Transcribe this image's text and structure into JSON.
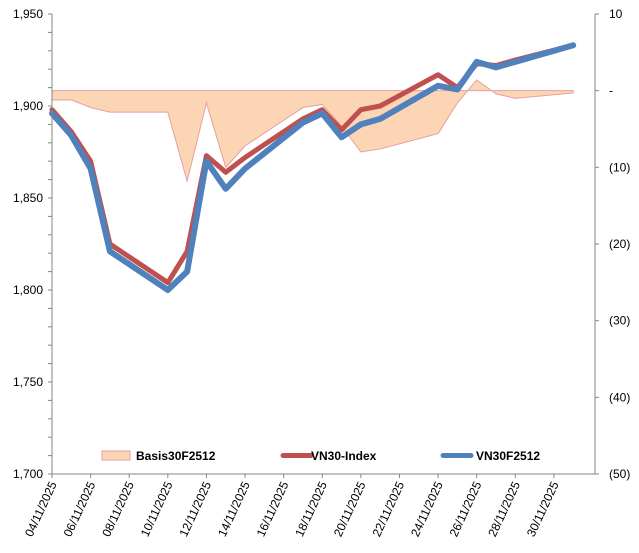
{
  "chart_data": {
    "type": "line",
    "title": "",
    "xlabel": "",
    "ylabel": "",
    "y2label": "",
    "grid": false,
    "legend_position": "bottom-inside",
    "x_axis": {
      "type": "date",
      "start": "04/11/2025",
      "end": "02/12/2025",
      "tick_labels": [
        "04/11/2025",
        "06/11/2025",
        "08/11/2025",
        "10/11/2025",
        "12/11/2025",
        "14/11/2025",
        "16/11/2025",
        "18/11/2025",
        "20/11/2025",
        "22/11/2025",
        "24/11/2025",
        "26/11/2025",
        "28/11/2025",
        "30/11/2025"
      ]
    },
    "y_axis": {
      "side": "left",
      "ylim": [
        1700,
        1950
      ],
      "major_step": 50,
      "minor_step": 10,
      "tick_labels": [
        "1,700",
        "1,750",
        "1,800",
        "1,850",
        "1,900",
        "1,950"
      ]
    },
    "y2_axis": {
      "side": "right",
      "ylim": [
        -50,
        10
      ],
      "major_step": 10,
      "tick_labels": [
        "(50)",
        "(40)",
        "(30)",
        "(20)",
        "(10)",
        "-",
        "10"
      ]
    },
    "x": [
      "04/11/2025",
      "05/11/2025",
      "06/11/2025",
      "07/11/2025",
      "10/11/2025",
      "11/11/2025",
      "12/11/2025",
      "13/11/2025",
      "14/11/2025",
      "17/11/2025",
      "18/11/2025",
      "19/11/2025",
      "20/11/2025",
      "21/11/2025",
      "24/11/2025",
      "25/11/2025",
      "26/11/2025",
      "27/11/2025",
      "28/11/2025",
      "01/12/2025"
    ],
    "series": [
      {
        "name": "Basis30F2512",
        "type": "area",
        "axis": "right",
        "color": "#FCD5B5",
        "border_color": "#E6A0A0",
        "values": [
          -1.2,
          -1.2,
          -2.2,
          -2.8,
          -2.8,
          -11.8,
          -1.6,
          -10.0,
          -7.2,
          -2.2,
          -1.8,
          -4.6,
          -8.0,
          -7.6,
          -5.6,
          -1.6,
          1.4,
          -0.4,
          -1.0,
          -0.3
        ]
      },
      {
        "name": "VN30-Index",
        "type": "line",
        "axis": "left",
        "color": "#C0504D",
        "values": [
          1898,
          1886,
          1870,
          1825,
          1804,
          1821,
          1873,
          1864,
          1872,
          1893,
          1898,
          1887,
          1898,
          1900,
          1917,
          1910,
          1923,
          1922,
          1925,
          1933
        ]
      },
      {
        "name": "VN30F2512",
        "type": "line",
        "axis": "left",
        "color": "#4F81BD",
        "values": [
          1896,
          1884,
          1866,
          1821,
          1800,
          1810,
          1870,
          1855,
          1866,
          1891,
          1896,
          1883,
          1890,
          1893,
          1911,
          1909,
          1924,
          1921,
          1924,
          1933
        ]
      }
    ],
    "legend": [
      {
        "label": "Basis30F2512",
        "symbol": "area"
      },
      {
        "label": "VN30-Index",
        "symbol": "line"
      },
      {
        "label": "VN30F2512",
        "symbol": "line"
      }
    ]
  }
}
